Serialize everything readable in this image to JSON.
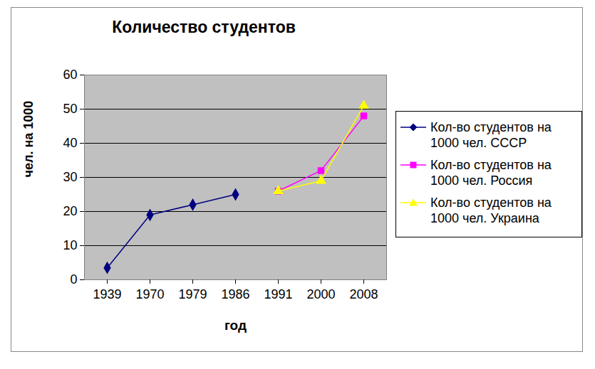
{
  "chart_data": {
    "type": "line",
    "title": "Количество студентов",
    "x_label": "год",
    "y_label": "чел. на 1000",
    "categories": [
      "1939",
      "1970",
      "1979",
      "1986",
      "1991",
      "2000",
      "2008"
    ],
    "series": [
      {
        "name": "Кол-во студентов на 1000 чел. СССР",
        "color": "#000080",
        "marker": "diamond",
        "values": [
          3.5,
          19,
          22,
          25,
          null,
          null,
          null
        ]
      },
      {
        "name": "Кол-во студентов на 1000 чел. Россия",
        "color": "#ff00ff",
        "marker": "square",
        "values": [
          null,
          null,
          null,
          null,
          26,
          32,
          48
        ]
      },
      {
        "name": "Кол-во студентов на 1000 чел. Украина",
        "color": "#ffff00",
        "marker": "triangle",
        "values": [
          null,
          null,
          null,
          null,
          26,
          29,
          51
        ]
      }
    ],
    "ylim": [
      0,
      60
    ],
    "yticks": [
      0,
      10,
      20,
      30,
      40,
      50,
      60
    ],
    "grid": true,
    "legend": "right"
  }
}
